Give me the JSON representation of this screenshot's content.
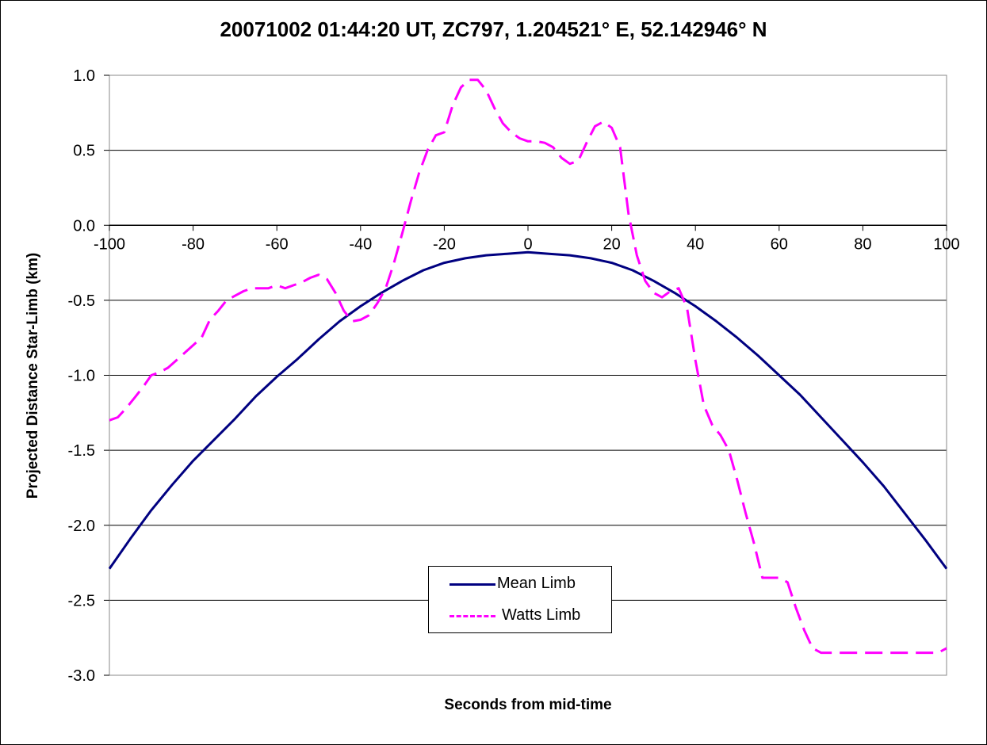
{
  "chart_data": {
    "type": "line",
    "title": "20071002 01:44:20 UT, ZC797, 1.204521° E, 52.142946° N",
    "xlabel": "Seconds from mid-time",
    "ylabel": "Projected Distance Star-Limb (km)",
    "xlim": [
      -100,
      100
    ],
    "ylim": [
      -3.0,
      1.0
    ],
    "x_ticks": [
      "-100",
      "-80",
      "-60",
      "-40",
      "-20",
      "0",
      "20",
      "40",
      "60",
      "80",
      "100"
    ],
    "y_ticks": [
      "1.0",
      "0.5",
      "0.0",
      "-0.5",
      "-1.0",
      "-1.5",
      "-2.0",
      "-2.5",
      "-3.0"
    ],
    "grid": "horizontal",
    "legend_position": "bottom-center",
    "series": [
      {
        "name": "Mean Limb",
        "color": "#000080",
        "style": "solid",
        "x": [
          -100,
          -95,
          -90,
          -85,
          -80,
          -75,
          -70,
          -65,
          -60,
          -55,
          -50,
          -45,
          -40,
          -35,
          -30,
          -25,
          -20,
          -15,
          -10,
          -5,
          0,
          5,
          10,
          15,
          20,
          25,
          30,
          35,
          40,
          45,
          50,
          55,
          60,
          65,
          70,
          75,
          80,
          85,
          90,
          95,
          100
        ],
        "y": [
          -2.29,
          -2.09,
          -1.9,
          -1.73,
          -1.57,
          -1.43,
          -1.29,
          -1.14,
          -1.01,
          -0.89,
          -0.76,
          -0.64,
          -0.54,
          -0.45,
          -0.37,
          -0.3,
          -0.25,
          -0.22,
          -0.2,
          -0.19,
          -0.18,
          -0.19,
          -0.2,
          -0.22,
          -0.25,
          -0.3,
          -0.37,
          -0.45,
          -0.54,
          -0.64,
          -0.75,
          -0.87,
          -1.0,
          -1.13,
          -1.28,
          -1.43,
          -1.58,
          -1.74,
          -1.92,
          -2.1,
          -2.29
        ]
      },
      {
        "name": "Watts Limb",
        "color": "#ff00ff",
        "style": "dashed",
        "x": [
          -100,
          -98,
          -96,
          -94,
          -92,
          -90,
          -88,
          -86,
          -84,
          -82,
          -80,
          -78,
          -76,
          -74,
          -72,
          -70,
          -68,
          -66,
          -64,
          -62,
          -60,
          -58,
          -56,
          -54,
          -52,
          -50,
          -48,
          -46,
          -44,
          -42,
          -40,
          -38,
          -36,
          -34,
          -32,
          -30,
          -28,
          -26,
          -24,
          -22,
          -20,
          -18,
          -16,
          -14,
          -12,
          -10,
          -8,
          -6,
          -4,
          -2,
          0,
          2,
          4,
          6,
          8,
          10,
          12,
          14,
          16,
          18,
          20,
          22,
          24,
          26,
          28,
          30,
          32,
          34,
          36,
          38,
          40,
          42,
          44,
          46,
          48,
          50,
          52,
          54,
          56,
          58,
          60,
          62,
          64,
          66,
          68,
          70,
          72,
          74,
          76,
          78,
          80,
          82,
          84,
          86,
          88,
          90,
          92,
          94,
          96,
          98,
          100
        ],
        "y": [
          -1.3,
          -1.28,
          -1.22,
          -1.15,
          -1.08,
          -1.0,
          -0.98,
          -0.95,
          -0.9,
          -0.85,
          -0.8,
          -0.75,
          -0.63,
          -0.57,
          -0.5,
          -0.47,
          -0.44,
          -0.42,
          -0.42,
          -0.42,
          -0.4,
          -0.42,
          -0.4,
          -0.38,
          -0.35,
          -0.33,
          -0.36,
          -0.45,
          -0.57,
          -0.64,
          -0.63,
          -0.6,
          -0.52,
          -0.42,
          -0.25,
          -0.05,
          0.16,
          0.35,
          0.5,
          0.6,
          0.62,
          0.8,
          0.92,
          0.97,
          0.97,
          0.9,
          0.78,
          0.68,
          0.62,
          0.58,
          0.56,
          0.56,
          0.55,
          0.52,
          0.45,
          0.41,
          0.43,
          0.55,
          0.66,
          0.69,
          0.65,
          0.52,
          0.08,
          -0.2,
          -0.37,
          -0.45,
          -0.48,
          -0.44,
          -0.42,
          -0.55,
          -0.9,
          -1.2,
          -1.33,
          -1.4,
          -1.5,
          -1.7,
          -1.92,
          -2.12,
          -2.35,
          -2.35,
          -2.35,
          -2.38,
          -2.55,
          -2.7,
          -2.82,
          -2.85,
          -2.85,
          -2.85,
          -2.85,
          -2.85,
          -2.85,
          -2.85,
          -2.85,
          -2.85,
          -2.85,
          -2.85,
          -2.85,
          -2.85,
          -2.85,
          -2.85,
          -2.82
        ]
      }
    ]
  }
}
